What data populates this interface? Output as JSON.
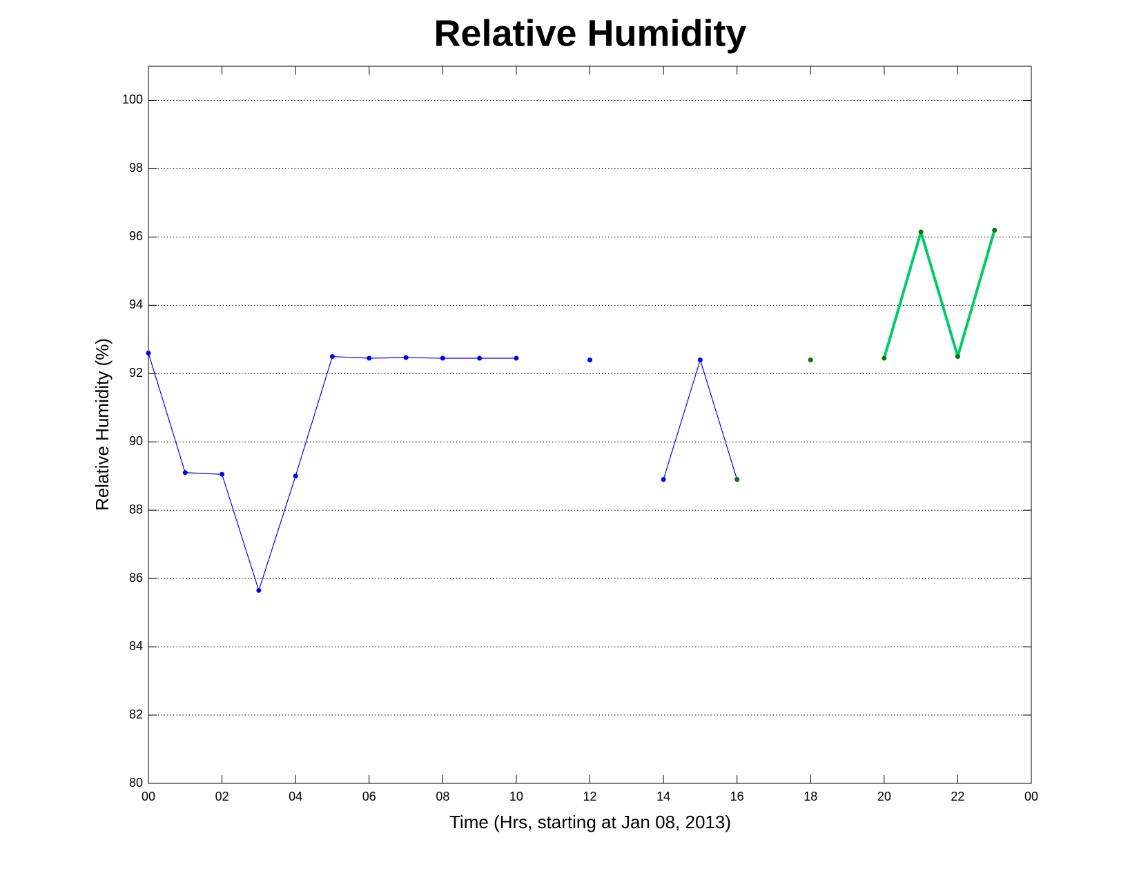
{
  "chart_data": {
    "type": "line",
    "title": "Relative Humidity",
    "xlabel": "Time (Hrs, starting at Jan 08, 2013)",
    "ylabel": "Relative Humidity (%)",
    "xlim": [
      0,
      24
    ],
    "ylim": [
      80,
      101
    ],
    "xticks": [
      {
        "value": 0,
        "label": "00"
      },
      {
        "value": 2,
        "label": "02"
      },
      {
        "value": 4,
        "label": "04"
      },
      {
        "value": 6,
        "label": "06"
      },
      {
        "value": 8,
        "label": "08"
      },
      10,
      12,
      14,
      16,
      18,
      20,
      22,
      {
        "value": 24,
        "label": "00"
      }
    ],
    "yticks": [
      80,
      82,
      84,
      86,
      88,
      90,
      92,
      94,
      96,
      98,
      100
    ],
    "grid": true,
    "series": [
      {
        "color": "#0000ff",
        "marker_color": "#0000ff",
        "line_width": 1.2,
        "x": [
          0,
          1,
          2,
          3,
          4,
          5,
          6,
          7,
          8,
          9,
          10,
          11,
          12,
          13,
          14,
          15,
          16
        ],
        "values": [
          92.6,
          89.1,
          89.05,
          85.65,
          89.0,
          92.5,
          92.45,
          92.47,
          92.45,
          92.45,
          92.45,
          null,
          92.4,
          null,
          88.9,
          92.4,
          88.9
        ]
      },
      {
        "color": "#00cc66",
        "marker_color": "#007a00",
        "line_width": 4,
        "x": [
          16,
          17,
          18,
          19,
          20,
          21,
          22,
          23
        ],
        "values": [
          88.9,
          null,
          92.4,
          null,
          92.45,
          96.15,
          92.5,
          96.2
        ]
      }
    ]
  }
}
